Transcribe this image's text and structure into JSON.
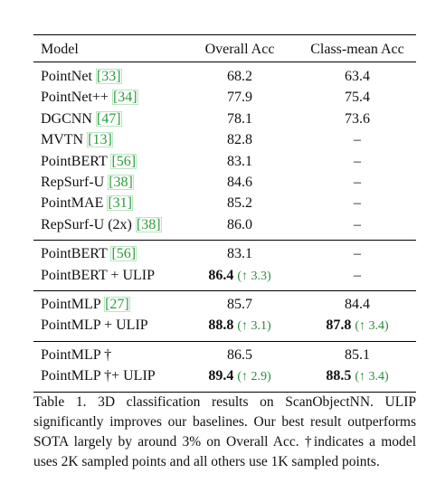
{
  "table": {
    "header": [
      "Model",
      "Overall Acc",
      "Class-mean Acc"
    ],
    "groups": [
      [
        {
          "model": "PointNet",
          "cite": "[33]",
          "overall": "68.2",
          "class_mean": "63.4"
        },
        {
          "model": "PointNet++",
          "cite": "[34]",
          "overall": "77.9",
          "class_mean": "75.4"
        },
        {
          "model": "DGCNN",
          "cite": "[47]",
          "overall": "78.1",
          "class_mean": "73.6"
        },
        {
          "model": "MVTN",
          "cite": "[13]",
          "overall": "82.8",
          "class_mean": "–"
        },
        {
          "model": "PointBERT",
          "cite": "[56]",
          "overall": "83.1",
          "class_mean": "–"
        },
        {
          "model": "RepSurf-U",
          "cite": "[38]",
          "overall": "84.6",
          "class_mean": "–"
        },
        {
          "model": "PointMAE",
          "cite": "[31]",
          "overall": "85.2",
          "class_mean": "–"
        },
        {
          "model": "RepSurf-U (2x)",
          "cite": "[38]",
          "overall": "86.0",
          "class_mean": "–"
        }
      ],
      [
        {
          "model": "PointBERT",
          "cite": "[56]",
          "overall": "83.1",
          "class_mean": "–"
        },
        {
          "model": "PointBERT + ULIP",
          "overall": "86.4",
          "overall_gain": "(↑ 3.3)",
          "class_mean": "–"
        }
      ],
      [
        {
          "model": "PointMLP",
          "cite": "[27]",
          "overall": "85.7",
          "class_mean": "84.4"
        },
        {
          "model": "PointMLP + ULIP",
          "overall": "88.8",
          "overall_gain": "(↑ 3.1)",
          "class_mean": "87.8",
          "class_mean_gain": "(↑ 3.4)"
        }
      ],
      [
        {
          "model": "PointMLP †",
          "overall": "86.5",
          "class_mean": "85.1"
        },
        {
          "model": "PointMLP †+ ULIP",
          "overall": "89.4",
          "overall_gain": "(↑ 2.9)",
          "class_mean": "88.5",
          "class_mean_gain": "(↑ 3.4)"
        }
      ]
    ]
  },
  "caption": "Table 1. 3D classification results on ScanObjectNN. ULIP significantly improves our baselines. Our best result outperforms SOTA largely by around 3% on Overall Acc. †indicates a model uses 2K sampled points and all others use 1K sampled points."
}
